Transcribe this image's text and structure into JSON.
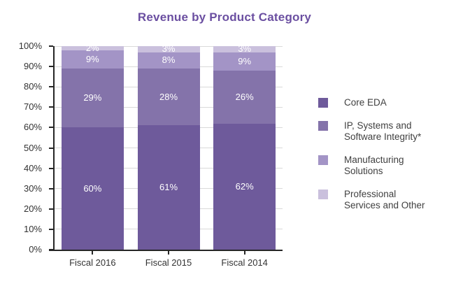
{
  "chart_data": {
    "type": "bar",
    "stacked": true,
    "title": "Revenue by Product Category",
    "categories": [
      "Fiscal 2016",
      "Fiscal 2015",
      "Fiscal 2014"
    ],
    "series": [
      {
        "name": "Core EDA",
        "values": [
          60,
          61,
          62
        ],
        "color": "#6e5a9b"
      },
      {
        "name": "IP, Systems and\nSoftware Integrity*",
        "values": [
          29,
          28,
          26
        ],
        "color": "#8473aa"
      },
      {
        "name": "Manufacturing\nSolutions",
        "values": [
          9,
          8,
          9
        ],
        "color": "#a394c6"
      },
      {
        "name": "Professional\nServices and Other",
        "values": [
          2,
          3,
          3
        ],
        "color": "#cac0dd"
      }
    ],
    "value_suffix": "%",
    "ylim": [
      0,
      100
    ],
    "ytick_step": 10,
    "ytick_suffix": "%",
    "grid": true,
    "legend_position": "right"
  },
  "style_colors": {
    "title": "#6b4fa1",
    "axis": "#262626",
    "grid": "#d9d9d9",
    "tick_label": "#333333",
    "legend_text": "#404040",
    "bar_label": "#ffffff",
    "background": "#ffffff"
  }
}
